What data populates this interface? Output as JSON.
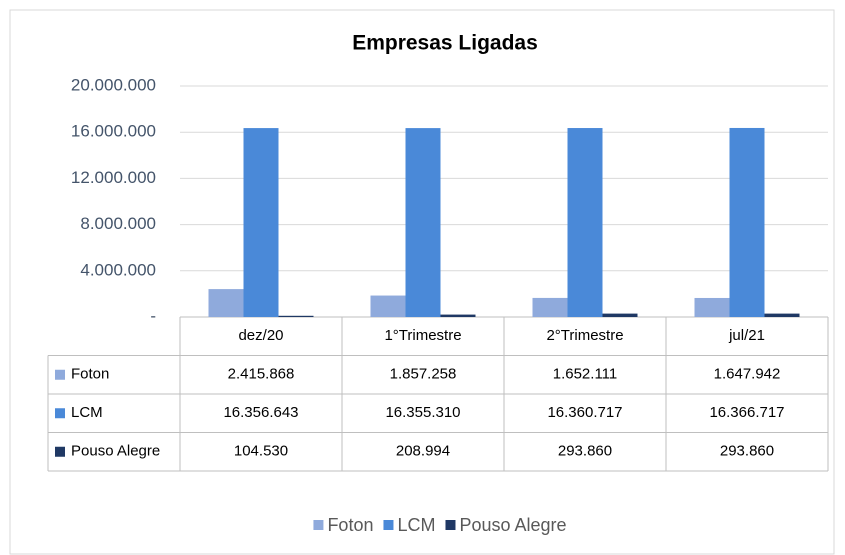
{
  "chart_data": {
    "type": "bar",
    "title": "Empresas Ligadas",
    "categories": [
      "dez/20",
      "1°Trimestre",
      "2°Trimestre",
      "jul/21"
    ],
    "series": [
      {
        "name": "Foton",
        "color": "#8faadc",
        "values": [
          2415868,
          1857258,
          1652111,
          1647942
        ],
        "value_labels": [
          "2.415.868",
          "1.857.258",
          "1.652.111",
          "1.647.942"
        ]
      },
      {
        "name": "LCM",
        "color": "#4a89d8",
        "values": [
          16356643,
          16355310,
          16360717,
          16366717
        ],
        "value_labels": [
          "16.356.643",
          "16.355.310",
          "16.360.717",
          "16.366.717"
        ]
      },
      {
        "name": "Pouso Alegre",
        "color": "#1f3864",
        "values": [
          104530,
          208994,
          293860,
          293860
        ],
        "value_labels": [
          "104.530",
          "208.994",
          "293.860",
          "293.860"
        ]
      }
    ],
    "ylim": [
      0,
      20000000
    ],
    "yticks": [
      {
        "value": 0,
        "label": "-"
      },
      {
        "value": 4000000,
        "label": "4.000.000"
      },
      {
        "value": 8000000,
        "label": "8.000.000"
      },
      {
        "value": 12000000,
        "label": "12.000.000"
      },
      {
        "value": 16000000,
        "label": "16.000.000"
      },
      {
        "value": 20000000,
        "label": "20.000.000"
      }
    ],
    "grid": true,
    "legend": "bottom"
  }
}
